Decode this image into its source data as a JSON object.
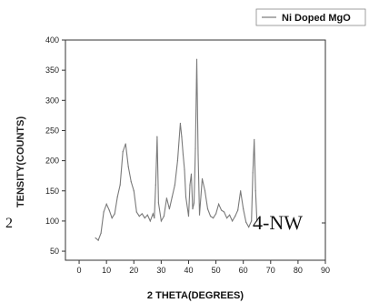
{
  "chart_data": {
    "type": "line",
    "title": "",
    "xlabel": "2 THETA(DEGREES)",
    "ylabel": "TENSITY(COUNTS)",
    "ylabel_prefix": "2",
    "xlim": [
      -5,
      90
    ],
    "ylim": [
      35,
      400
    ],
    "x_ticks": [
      0,
      10,
      20,
      30,
      40,
      50,
      60,
      70,
      80,
      90
    ],
    "y_ticks": [
      50,
      100,
      150,
      200,
      250,
      300,
      350,
      400
    ],
    "legend_position": "top-right",
    "annotation": "4-NW",
    "series": [
      {
        "name": "Ni Doped MgO",
        "color": "#7a7a7a",
        "x": [
          6,
          7,
          8,
          9,
          10,
          11,
          12,
          13,
          14,
          15,
          16,
          17,
          18,
          19,
          20,
          21,
          22,
          23,
          24,
          25,
          26,
          27,
          27.5,
          28,
          28.5,
          29,
          30,
          31,
          32,
          33,
          34,
          35,
          36,
          37,
          37.5,
          38,
          38.5,
          39,
          40,
          40.5,
          41,
          41.5,
          42,
          42.5,
          43,
          43.5,
          44,
          45,
          46,
          47,
          48,
          49,
          50,
          51,
          52,
          53,
          54,
          55,
          56,
          57,
          58,
          59,
          60,
          61,
          62,
          63,
          63.5,
          64,
          64.5,
          65
        ],
        "y": [
          72,
          68,
          80,
          115,
          128,
          118,
          105,
          112,
          140,
          160,
          215,
          228,
          190,
          165,
          150,
          115,
          108,
          112,
          105,
          110,
          100,
          112,
          105,
          160,
          240,
          130,
          100,
          108,
          138,
          120,
          140,
          160,
          200,
          262,
          240,
          210,
          185,
          140,
          108,
          160,
          178,
          120,
          130,
          220,
          368,
          210,
          110,
          170,
          150,
          120,
          108,
          105,
          112,
          128,
          118,
          115,
          105,
          110,
          100,
          108,
          118,
          150,
          120,
          98,
          90,
          100,
          180,
          235,
          150,
          100
        ]
      }
    ]
  }
}
